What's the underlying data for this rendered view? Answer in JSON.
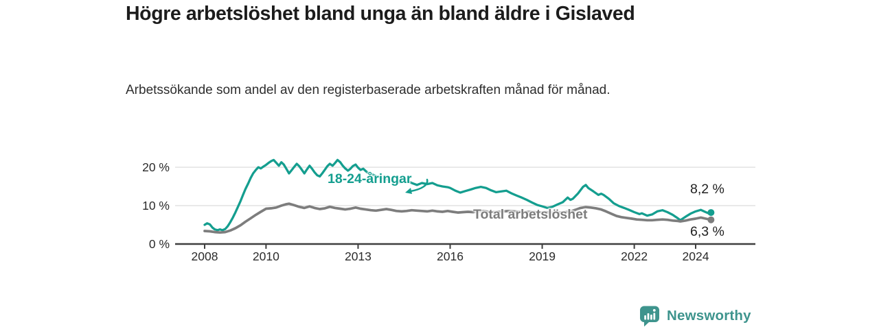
{
  "header": {
    "title": "Högre arbetslöshet bland unga än bland äldre i Gislaved",
    "subtitle": "Arbetssökande som andel av den registerbaserade arbetskraften månad för månad."
  },
  "chart_data": {
    "type": "line",
    "title": "Högre arbetslöshet bland unga än bland äldre i Gislaved",
    "xlabel": "",
    "ylabel": "",
    "x_axis": {
      "ticks": [
        2008,
        2010,
        2013,
        2016,
        2019,
        2022,
        2024
      ],
      "tick_labels": [
        "2008",
        "2010",
        "2013",
        "2016",
        "2019",
        "2022",
        "2024"
      ],
      "range": [
        2007.05,
        2025.95
      ]
    },
    "y_axis": {
      "ticks": [
        0,
        10,
        20
      ],
      "tick_labels": [
        "0 %",
        "10 %",
        "20 %"
      ],
      "range": [
        0,
        23
      ],
      "grid": true
    },
    "colors": {
      "young": "#149e8f",
      "total": "#7d7d7d",
      "grid": "#dcdcdc",
      "axis": "#3e3e3e"
    },
    "series": [
      {
        "name": "18-24-åringar",
        "color": "#149e8f",
        "end_label": "8,2 %",
        "end_value": 8.2,
        "points": [
          [
            2008.0,
            5.0
          ],
          [
            2008.08,
            5.4
          ],
          [
            2008.17,
            5.1
          ],
          [
            2008.25,
            4.3
          ],
          [
            2008.33,
            3.8
          ],
          [
            2008.42,
            3.6
          ],
          [
            2008.5,
            3.8
          ],
          [
            2008.58,
            3.6
          ],
          [
            2008.67,
            3.9
          ],
          [
            2008.75,
            4.6
          ],
          [
            2008.83,
            5.6
          ],
          [
            2008.92,
            6.9
          ],
          [
            2009.0,
            8.2
          ],
          [
            2009.08,
            9.6
          ],
          [
            2009.17,
            11.2
          ],
          [
            2009.25,
            12.8
          ],
          [
            2009.33,
            14.3
          ],
          [
            2009.42,
            15.8
          ],
          [
            2009.5,
            17.2
          ],
          [
            2009.58,
            18.4
          ],
          [
            2009.67,
            19.3
          ],
          [
            2009.75,
            20.0
          ],
          [
            2009.83,
            19.7
          ],
          [
            2009.92,
            20.2
          ],
          [
            2010.0,
            20.6
          ],
          [
            2010.08,
            21.1
          ],
          [
            2010.17,
            21.6
          ],
          [
            2010.25,
            21.9
          ],
          [
            2010.33,
            21.2
          ],
          [
            2010.42,
            20.4
          ],
          [
            2010.5,
            21.3
          ],
          [
            2010.58,
            20.7
          ],
          [
            2010.67,
            19.5
          ],
          [
            2010.75,
            18.4
          ],
          [
            2010.83,
            19.2
          ],
          [
            2010.92,
            20.1
          ],
          [
            2011.0,
            20.9
          ],
          [
            2011.08,
            20.3
          ],
          [
            2011.17,
            19.3
          ],
          [
            2011.25,
            18.4
          ],
          [
            2011.33,
            19.4
          ],
          [
            2011.42,
            20.4
          ],
          [
            2011.5,
            19.6
          ],
          [
            2011.58,
            18.7
          ],
          [
            2011.67,
            17.9
          ],
          [
            2011.75,
            17.6
          ],
          [
            2011.83,
            18.4
          ],
          [
            2011.92,
            19.4
          ],
          [
            2012.0,
            20.3
          ],
          [
            2012.08,
            20.9
          ],
          [
            2012.17,
            20.4
          ],
          [
            2012.25,
            21.1
          ],
          [
            2012.33,
            21.9
          ],
          [
            2012.42,
            21.3
          ],
          [
            2012.5,
            20.4
          ],
          [
            2012.58,
            19.7
          ],
          [
            2012.67,
            19.1
          ],
          [
            2012.75,
            19.6
          ],
          [
            2012.83,
            20.3
          ],
          [
            2012.92,
            20.7
          ],
          [
            2013.0,
            19.9
          ],
          [
            2013.08,
            19.3
          ],
          [
            2013.17,
            19.6
          ],
          [
            2013.25,
            19.0
          ],
          [
            2013.33,
            18.5
          ],
          [
            2013.42,
            18.2
          ],
          [
            2013.5,
            18.0
          ],
          [
            2013.58,
            17.7
          ],
          [
            2013.67,
            17.4
          ],
          [
            2013.75,
            17.2
          ],
          [
            2013.83,
            17.0
          ],
          [
            2013.92,
            16.9
          ],
          [
            2014.0,
            16.8
          ],
          [
            2014.17,
            16.4
          ],
          [
            2014.33,
            16.1
          ],
          [
            2014.5,
            16.3
          ],
          [
            2014.58,
            16.6
          ],
          [
            2014.75,
            15.9
          ],
          [
            2014.92,
            15.4
          ],
          [
            2015.08,
            15.9
          ],
          [
            2015.25,
            15.6
          ],
          [
            2015.42,
            15.9
          ],
          [
            2015.58,
            15.3
          ],
          [
            2015.75,
            15.0
          ],
          [
            2015.92,
            14.8
          ],
          [
            2016.0,
            14.6
          ],
          [
            2016.17,
            13.9
          ],
          [
            2016.33,
            13.4
          ],
          [
            2016.5,
            13.8
          ],
          [
            2016.67,
            14.2
          ],
          [
            2016.83,
            14.6
          ],
          [
            2017.0,
            14.9
          ],
          [
            2017.17,
            14.6
          ],
          [
            2017.33,
            14.0
          ],
          [
            2017.5,
            13.5
          ],
          [
            2017.67,
            13.7
          ],
          [
            2017.83,
            13.9
          ],
          [
            2018.0,
            13.2
          ],
          [
            2018.17,
            12.6
          ],
          [
            2018.33,
            12.1
          ],
          [
            2018.5,
            11.5
          ],
          [
            2018.67,
            10.8
          ],
          [
            2018.83,
            10.2
          ],
          [
            2019.0,
            9.8
          ],
          [
            2019.17,
            9.4
          ],
          [
            2019.33,
            9.7
          ],
          [
            2019.5,
            10.3
          ],
          [
            2019.67,
            10.9
          ],
          [
            2019.83,
            12.1
          ],
          [
            2019.92,
            11.5
          ],
          [
            2020.0,
            11.8
          ],
          [
            2020.17,
            13.2
          ],
          [
            2020.33,
            14.9
          ],
          [
            2020.42,
            15.4
          ],
          [
            2020.5,
            14.6
          ],
          [
            2020.67,
            13.7
          ],
          [
            2020.83,
            12.8
          ],
          [
            2020.92,
            13.1
          ],
          [
            2021.0,
            12.8
          ],
          [
            2021.17,
            11.8
          ],
          [
            2021.33,
            10.6
          ],
          [
            2021.5,
            9.9
          ],
          [
            2021.67,
            9.4
          ],
          [
            2021.83,
            8.9
          ],
          [
            2022.0,
            8.3
          ],
          [
            2022.17,
            7.8
          ],
          [
            2022.25,
            8.0
          ],
          [
            2022.42,
            7.4
          ],
          [
            2022.58,
            7.7
          ],
          [
            2022.75,
            8.5
          ],
          [
            2022.92,
            8.8
          ],
          [
            2023.08,
            8.3
          ],
          [
            2023.25,
            7.6
          ],
          [
            2023.42,
            6.7
          ],
          [
            2023.5,
            6.2
          ],
          [
            2023.67,
            7.1
          ],
          [
            2023.83,
            7.9
          ],
          [
            2024.0,
            8.5
          ],
          [
            2024.17,
            8.9
          ],
          [
            2024.33,
            8.3
          ],
          [
            2024.42,
            8.0
          ],
          [
            2024.5,
            8.2
          ]
        ]
      },
      {
        "name": "Total arbetslöshet",
        "color": "#7d7d7d",
        "end_label": "6,3 %",
        "end_value": 6.3,
        "points": [
          [
            2008.0,
            3.4
          ],
          [
            2008.17,
            3.3
          ],
          [
            2008.33,
            3.1
          ],
          [
            2008.5,
            3.0
          ],
          [
            2008.67,
            3.1
          ],
          [
            2008.83,
            3.5
          ],
          [
            2009.0,
            4.1
          ],
          [
            2009.17,
            4.9
          ],
          [
            2009.33,
            5.8
          ],
          [
            2009.5,
            6.7
          ],
          [
            2009.67,
            7.6
          ],
          [
            2009.83,
            8.4
          ],
          [
            2010.0,
            9.2
          ],
          [
            2010.17,
            9.3
          ],
          [
            2010.33,
            9.5
          ],
          [
            2010.5,
            10.0
          ],
          [
            2010.67,
            10.4
          ],
          [
            2010.75,
            10.5
          ],
          [
            2010.92,
            10.1
          ],
          [
            2011.08,
            9.7
          ],
          [
            2011.25,
            9.4
          ],
          [
            2011.42,
            9.8
          ],
          [
            2011.58,
            9.4
          ],
          [
            2011.75,
            9.1
          ],
          [
            2011.92,
            9.3
          ],
          [
            2012.08,
            9.7
          ],
          [
            2012.25,
            9.4
          ],
          [
            2012.42,
            9.2
          ],
          [
            2012.58,
            9.0
          ],
          [
            2012.75,
            9.2
          ],
          [
            2012.92,
            9.5
          ],
          [
            2013.08,
            9.2
          ],
          [
            2013.25,
            9.0
          ],
          [
            2013.42,
            8.8
          ],
          [
            2013.58,
            8.7
          ],
          [
            2013.75,
            8.9
          ],
          [
            2013.92,
            9.1
          ],
          [
            2014.08,
            8.9
          ],
          [
            2014.25,
            8.6
          ],
          [
            2014.42,
            8.5
          ],
          [
            2014.58,
            8.6
          ],
          [
            2014.75,
            8.8
          ],
          [
            2014.92,
            8.7
          ],
          [
            2015.08,
            8.6
          ],
          [
            2015.25,
            8.5
          ],
          [
            2015.42,
            8.7
          ],
          [
            2015.58,
            8.5
          ],
          [
            2015.75,
            8.4
          ],
          [
            2015.92,
            8.6
          ],
          [
            2016.08,
            8.4
          ],
          [
            2016.25,
            8.2
          ],
          [
            2016.42,
            8.3
          ],
          [
            2016.58,
            8.4
          ],
          [
            2016.75,
            8.3
          ],
          [
            2016.92,
            8.5
          ],
          [
            2017.08,
            8.6
          ],
          [
            2017.25,
            8.4
          ],
          [
            2017.42,
            8.3
          ],
          [
            2017.58,
            8.4
          ],
          [
            2017.75,
            8.5
          ],
          [
            2017.92,
            8.6
          ],
          [
            2018.08,
            8.5
          ],
          [
            2018.25,
            8.4
          ],
          [
            2018.42,
            8.3
          ],
          [
            2018.58,
            8.4
          ],
          [
            2018.75,
            8.3
          ],
          [
            2018.92,
            8.2
          ],
          [
            2019.08,
            8.3
          ],
          [
            2019.25,
            8.2
          ],
          [
            2019.42,
            8.1
          ],
          [
            2019.58,
            8.2
          ],
          [
            2019.75,
            8.3
          ],
          [
            2019.92,
            8.5
          ],
          [
            2020.08,
            8.9
          ],
          [
            2020.25,
            9.4
          ],
          [
            2020.42,
            9.6
          ],
          [
            2020.58,
            9.5
          ],
          [
            2020.75,
            9.3
          ],
          [
            2020.92,
            9.0
          ],
          [
            2021.08,
            8.5
          ],
          [
            2021.25,
            7.9
          ],
          [
            2021.42,
            7.3
          ],
          [
            2021.58,
            7.0
          ],
          [
            2021.75,
            6.8
          ],
          [
            2021.92,
            6.6
          ],
          [
            2022.08,
            6.4
          ],
          [
            2022.25,
            6.3
          ],
          [
            2022.42,
            6.2
          ],
          [
            2022.58,
            6.2
          ],
          [
            2022.75,
            6.3
          ],
          [
            2022.92,
            6.4
          ],
          [
            2023.08,
            6.3
          ],
          [
            2023.25,
            6.1
          ],
          [
            2023.42,
            6.0
          ],
          [
            2023.5,
            5.9
          ],
          [
            2023.67,
            6.1
          ],
          [
            2023.83,
            6.4
          ],
          [
            2024.0,
            6.6
          ],
          [
            2024.17,
            6.9
          ],
          [
            2024.33,
            6.6
          ],
          [
            2024.5,
            6.3
          ]
        ]
      }
    ]
  },
  "labels": {
    "young_series": "18-24-åringar",
    "total_series": "Total arbetslöshet",
    "young_end": "8,2 %",
    "total_end": "6,3 %"
  },
  "footer": {
    "brand": "Newsworthy",
    "brand_color": "#3e948d"
  }
}
